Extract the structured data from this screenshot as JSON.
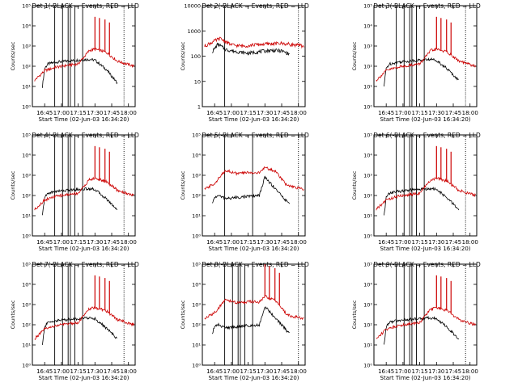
{
  "chart_data": [
    {
      "type": "line",
      "title": "Det 1(-BLACK = Events, RED = LLD",
      "xlabel": "Start Time (02-Jun-03 16:34:20)",
      "ylabel": "Counts/sec",
      "y_scale": "log",
      "ylim": [
        1,
        100000
      ],
      "y_ticks": [
        1,
        10,
        100,
        1000,
        10000,
        100000
      ],
      "y_tick_labels": [
        "10⁰",
        "10¹",
        "10²",
        "10³",
        "10⁴",
        "10⁵"
      ],
      "x_ticks": [
        "16:45",
        "17:00",
        "17:15",
        "17:30",
        "17:45",
        "18:00"
      ],
      "vlines": [
        "16:54",
        "17:01",
        "17:06",
        "17:08",
        "17:12",
        "17:19"
      ],
      "dotted_vline": "17:56",
      "spike_times": [
        "17:30",
        "17:34",
        "17:39",
        "17:43"
      ],
      "series": [
        {
          "name": "BLACK = Events",
          "color": "#000000",
          "x": [
            "16:43",
            "16:45",
            "16:48",
            "16:55",
            "17:05",
            "17:15",
            "17:25",
            "17:30",
            "17:40",
            "17:50"
          ],
          "y": [
            10,
            80,
            130,
            160,
            180,
            200,
            220,
            200,
            70,
            15
          ]
        },
        {
          "name": "RED = LLD",
          "color": "#cc0000",
          "x": [
            "16:36",
            "16:45",
            "16:55",
            "17:05",
            "17:15",
            "17:25",
            "17:30",
            "17:40",
            "17:50",
            "18:05"
          ],
          "y": [
            20,
            60,
            90,
            110,
            130,
            600,
            700,
            500,
            180,
            100
          ]
        }
      ]
    },
    {
      "type": "line",
      "title": "Det 2(-BLACK = Events, RED = LLD",
      "xlabel": "Start Time (02-Jun-03 16:34:20)",
      "ylabel": "Counts/sec",
      "y_scale": "log",
      "ylim": [
        1,
        10000
      ],
      "y_ticks": [
        1,
        10,
        100,
        1000,
        10000
      ],
      "y_tick_labels": [
        "1",
        "10",
        "100",
        "1000",
        "10000"
      ],
      "x_ticks": [
        "16:45",
        "17:00",
        "17:15",
        "17:30",
        "17:45",
        "18:00"
      ],
      "vlines": [
        "16:54"
      ],
      "dotted_vline": "18:00",
      "spike_times": [],
      "series": [
        {
          "name": "BLACK = Events",
          "color": "#000000",
          "x": [
            "16:43",
            "16:48",
            "16:55",
            "17:05",
            "17:15",
            "17:25",
            "17:35",
            "17:45",
            "17:52"
          ],
          "y": [
            150,
            300,
            180,
            150,
            130,
            150,
            170,
            160,
            120
          ]
        },
        {
          "name": "RED = LLD",
          "color": "#cc0000",
          "x": [
            "16:36",
            "16:45",
            "16:50",
            "17:00",
            "17:10",
            "17:20",
            "17:30",
            "17:45",
            "18:05"
          ],
          "y": [
            250,
            400,
            500,
            280,
            250,
            280,
            300,
            320,
            250
          ]
        }
      ]
    },
    {
      "type": "line",
      "title": "Det 3(-BLACK = Events, RED = LLD",
      "xlabel": "Start Time (02-Jun-03 16:34:20)",
      "ylabel": "Counts/sec",
      "y_scale": "log",
      "ylim": [
        1,
        100000
      ],
      "y_ticks": [
        1,
        10,
        100,
        1000,
        10000,
        100000
      ],
      "y_tick_labels": [
        "10⁰",
        "10¹",
        "10²",
        "10³",
        "10⁴",
        "10⁵"
      ],
      "x_ticks": [
        "16:45",
        "17:00",
        "17:15",
        "17:30",
        "17:45",
        "18:00"
      ],
      "vlines": [
        "16:54",
        "17:01",
        "17:06",
        "17:08",
        "17:12",
        "17:19"
      ],
      "dotted_vline": "17:56",
      "spike_times": [
        "17:30",
        "17:34",
        "17:39",
        "17:43"
      ],
      "series": [
        {
          "name": "BLACK = Events",
          "color": "#000000",
          "x": [
            "16:43",
            "16:45",
            "16:48",
            "16:55",
            "17:05",
            "17:15",
            "17:25",
            "17:30",
            "17:40",
            "17:50"
          ],
          "y": [
            10,
            80,
            130,
            160,
            180,
            200,
            220,
            200,
            70,
            20
          ]
        },
        {
          "name": "RED = LLD",
          "color": "#cc0000",
          "x": [
            "16:36",
            "16:45",
            "16:55",
            "17:05",
            "17:15",
            "17:25",
            "17:30",
            "17:40",
            "17:50",
            "18:05"
          ],
          "y": [
            20,
            60,
            90,
            110,
            130,
            600,
            700,
            500,
            180,
            100
          ]
        }
      ]
    },
    {
      "type": "line",
      "title": "Det 4(-BLACK = Events, RED = LLD",
      "xlabel": "Start Time (02-Jun-03 16:34:20)",
      "ylabel": "Counts/sec",
      "y_scale": "log",
      "ylim": [
        1,
        100000
      ],
      "y_ticks": [
        1,
        10,
        100,
        1000,
        10000,
        100000
      ],
      "y_tick_labels": [
        "10⁰",
        "10¹",
        "10²",
        "10³",
        "10⁴",
        "10⁵"
      ],
      "x_ticks": [
        "16:45",
        "17:00",
        "17:15",
        "17:30",
        "17:45",
        "18:00"
      ],
      "vlines": [
        "16:54",
        "17:01",
        "17:06",
        "17:08",
        "17:12",
        "17:19"
      ],
      "dotted_vline": "17:56",
      "spike_times": [
        "17:30",
        "17:34",
        "17:39",
        "17:43"
      ],
      "series": [
        {
          "name": "BLACK = Events",
          "color": "#000000",
          "x": [
            "16:43",
            "16:45",
            "16:48",
            "16:55",
            "17:05",
            "17:15",
            "17:25",
            "17:30",
            "17:40",
            "17:50"
          ],
          "y": [
            10,
            80,
            130,
            160,
            180,
            200,
            220,
            200,
            70,
            20
          ]
        },
        {
          "name": "RED = LLD",
          "color": "#cc0000",
          "x": [
            "16:36",
            "16:45",
            "16:55",
            "17:05",
            "17:15",
            "17:25",
            "17:30",
            "17:40",
            "17:50",
            "18:05"
          ],
          "y": [
            20,
            60,
            90,
            110,
            130,
            600,
            700,
            500,
            180,
            100
          ]
        }
      ]
    },
    {
      "type": "line",
      "title": "Det 5(-BLACK = Events, RED = LLD",
      "xlabel": "Start Time (02-Jun-03 16:34:20)",
      "ylabel": "Counts/sec",
      "y_scale": "log",
      "ylim": [
        1,
        100000
      ],
      "y_ticks": [
        1,
        10,
        100,
        1000,
        10000,
        100000
      ],
      "y_tick_labels": [
        "10⁰",
        "10¹",
        "10²",
        "10³",
        "10⁴",
        "10⁵"
      ],
      "x_ticks": [
        "16:45",
        "17:00",
        "17:15",
        "17:30",
        "17:45",
        "18:00"
      ],
      "vlines": [
        "16:54",
        "17:19"
      ],
      "dotted_vline": "18:00",
      "spike_times": [],
      "series": [
        {
          "name": "BLACK = Events",
          "color": "#000000",
          "x": [
            "16:43",
            "16:45",
            "16:48",
            "16:55",
            "17:05",
            "17:15",
            "17:25",
            "17:30",
            "17:40",
            "17:52"
          ],
          "y": [
            40,
            80,
            100,
            70,
            80,
            90,
            100,
            800,
            200,
            35
          ]
        },
        {
          "name": "RED = LLD",
          "color": "#cc0000",
          "x": [
            "16:36",
            "16:45",
            "16:55",
            "17:05",
            "17:15",
            "17:25",
            "17:30",
            "17:40",
            "17:50",
            "18:05"
          ],
          "y": [
            200,
            400,
            1800,
            1200,
            1400,
            1300,
            2500,
            1500,
            300,
            200
          ]
        }
      ]
    },
    {
      "type": "line",
      "title": "Det 6(-BLACK = Events, RED = LLD",
      "xlabel": "Start Time (02-Jun-03 16:34:20)",
      "ylabel": "Counts/sec",
      "y_scale": "log",
      "ylim": [
        1,
        100000
      ],
      "y_ticks": [
        1,
        10,
        100,
        1000,
        10000,
        100000
      ],
      "y_tick_labels": [
        "10⁰",
        "10¹",
        "10²",
        "10³",
        "10⁴",
        "10⁵"
      ],
      "x_ticks": [
        "16:45",
        "17:00",
        "17:15",
        "17:30",
        "17:45",
        "18:00"
      ],
      "vlines": [
        "16:54",
        "17:01",
        "17:06",
        "17:08",
        "17:12",
        "17:19"
      ],
      "dotted_vline": "17:56",
      "spike_times": [
        "17:30",
        "17:34",
        "17:39",
        "17:43"
      ],
      "series": [
        {
          "name": "BLACK = Events",
          "color": "#000000",
          "x": [
            "16:43",
            "16:45",
            "16:48",
            "16:55",
            "17:05",
            "17:15",
            "17:25",
            "17:30",
            "17:40",
            "17:50"
          ],
          "y": [
            10,
            80,
            130,
            160,
            180,
            200,
            220,
            200,
            70,
            20
          ]
        },
        {
          "name": "RED = LLD",
          "color": "#cc0000",
          "x": [
            "16:36",
            "16:45",
            "16:55",
            "17:05",
            "17:15",
            "17:25",
            "17:30",
            "17:40",
            "17:50",
            "18:05"
          ],
          "y": [
            20,
            60,
            90,
            110,
            130,
            600,
            700,
            500,
            180,
            100
          ]
        }
      ]
    },
    {
      "type": "line",
      "title": "Det 7(-BLACK = Events, RED = LLD",
      "xlabel": "Start Time (02-Jun-03 16:34:20)",
      "ylabel": "Counts/sec",
      "y_scale": "log",
      "ylim": [
        1,
        100000
      ],
      "y_ticks": [
        1,
        10,
        100,
        1000,
        10000,
        100000
      ],
      "y_tick_labels": [
        "10⁰",
        "10¹",
        "10²",
        "10³",
        "10⁴",
        "10⁵"
      ],
      "x_ticks": [
        "16:45",
        "17:00",
        "17:15",
        "17:30",
        "17:45",
        "18:00"
      ],
      "vlines": [
        "16:54",
        "17:01",
        "17:06",
        "17:08",
        "17:12",
        "17:19"
      ],
      "dotted_vline": "17:56",
      "spike_times": [
        "17:30",
        "17:34",
        "17:39",
        "17:43"
      ],
      "series": [
        {
          "name": "BLACK = Events",
          "color": "#000000",
          "x": [
            "16:43",
            "16:45",
            "16:48",
            "16:55",
            "17:05",
            "17:15",
            "17:25",
            "17:30",
            "17:40",
            "17:50"
          ],
          "y": [
            10,
            80,
            130,
            160,
            180,
            200,
            220,
            200,
            70,
            20
          ]
        },
        {
          "name": "RED = LLD",
          "color": "#cc0000",
          "x": [
            "16:36",
            "16:45",
            "16:55",
            "17:05",
            "17:15",
            "17:25",
            "17:30",
            "17:40",
            "17:50",
            "18:05"
          ],
          "y": [
            20,
            60,
            90,
            110,
            130,
            600,
            700,
            500,
            180,
            100
          ]
        }
      ]
    },
    {
      "type": "line",
      "title": "Det 8(-BLACK = Events, RED = LLD",
      "xlabel": "Start Time (02-Jun-03 16:34:20)",
      "ylabel": "Counts/sec",
      "y_scale": "log",
      "ylim": [
        1,
        100000
      ],
      "y_ticks": [
        1,
        10,
        100,
        1000,
        10000,
        100000
      ],
      "y_tick_labels": [
        "10⁰",
        "10¹",
        "10²",
        "10³",
        "10⁴",
        "10⁵"
      ],
      "x_ticks": [
        "16:45",
        "17:00",
        "17:15",
        "17:30",
        "17:45",
        "18:00"
      ],
      "vlines": [
        "16:54",
        "17:01",
        "17:06",
        "17:08",
        "17:12",
        "17:19"
      ],
      "dotted_vline": "18:00",
      "spike_times": [
        "17:30",
        "17:34",
        "17:39",
        "17:43"
      ],
      "series": [
        {
          "name": "BLACK = Events",
          "color": "#000000",
          "x": [
            "16:43",
            "16:45",
            "16:48",
            "16:55",
            "17:05",
            "17:15",
            "17:25",
            "17:30",
            "17:40",
            "17:52"
          ],
          "y": [
            40,
            80,
            100,
            70,
            80,
            90,
            100,
            800,
            200,
            35
          ]
        },
        {
          "name": "RED = LLD",
          "color": "#cc0000",
          "x": [
            "16:36",
            "16:45",
            "16:55",
            "17:05",
            "17:15",
            "17:25",
            "17:30",
            "17:40",
            "17:50",
            "18:05"
          ],
          "y": [
            200,
            400,
            1800,
            1200,
            1400,
            1300,
            2500,
            1500,
            300,
            200
          ]
        }
      ]
    },
    {
      "type": "line",
      "title": "Det 9(-BLACK = Events, RED = LLD",
      "xlabel": "Start Time (02-Jun-03 16:34:20)",
      "ylabel": "Counts/sec",
      "y_scale": "log",
      "ylim": [
        1,
        100000
      ],
      "y_ticks": [
        1,
        10,
        100,
        1000,
        10000,
        100000
      ],
      "y_tick_labels": [
        "10⁰",
        "10¹",
        "10²",
        "10³",
        "10⁴",
        "10⁵"
      ],
      "x_ticks": [
        "16:45",
        "17:00",
        "17:15",
        "17:30",
        "17:45",
        "18:00"
      ],
      "vlines": [
        "16:54",
        "17:01",
        "17:06",
        "17:08",
        "17:12",
        "17:19"
      ],
      "dotted_vline": "17:56",
      "spike_times": [
        "17:30",
        "17:34",
        "17:39",
        "17:43"
      ],
      "series": [
        {
          "name": "BLACK = Events",
          "color": "#000000",
          "x": [
            "16:43",
            "16:45",
            "16:48",
            "16:55",
            "17:05",
            "17:15",
            "17:25",
            "17:30",
            "17:40",
            "17:50"
          ],
          "y": [
            10,
            80,
            130,
            160,
            180,
            200,
            220,
            200,
            70,
            20
          ]
        },
        {
          "name": "RED = LLD",
          "color": "#cc0000",
          "x": [
            "16:36",
            "16:45",
            "16:55",
            "17:05",
            "17:15",
            "17:25",
            "17:30",
            "17:40",
            "17:50",
            "18:05"
          ],
          "y": [
            20,
            60,
            90,
            110,
            130,
            600,
            700,
            500,
            180,
            100
          ]
        }
      ]
    }
  ]
}
